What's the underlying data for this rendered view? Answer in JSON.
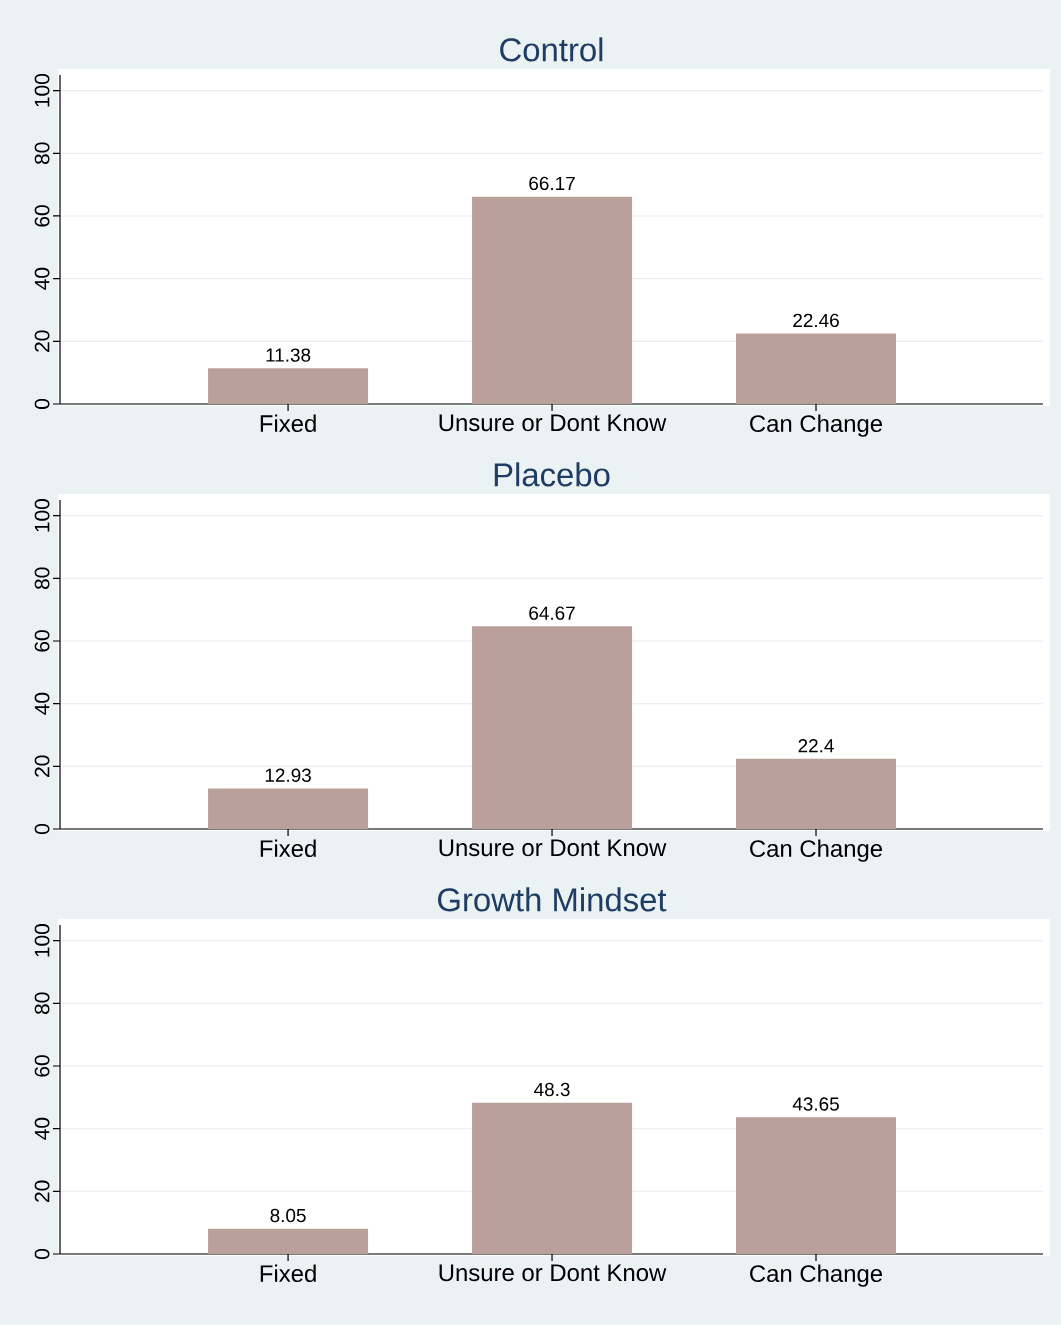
{
  "chart_data": [
    {
      "type": "bar",
      "title": "Control",
      "categories": [
        "Fixed",
        "Unsure or Dont Know",
        "Can Change"
      ],
      "values": [
        11.38,
        66.17,
        22.46
      ],
      "color": "#b9a09b",
      "ylim": [
        0,
        105
      ],
      "yticks": [
        0,
        20,
        40,
        60,
        80,
        100
      ],
      "grid": "y",
      "data_labels": true
    },
    {
      "type": "bar",
      "title": "Placebo",
      "categories": [
        "Fixed",
        "Unsure or Dont Know",
        "Can Change"
      ],
      "values": [
        12.93,
        64.67,
        22.4
      ],
      "color": "#b9a09b",
      "ylim": [
        0,
        105
      ],
      "yticks": [
        0,
        20,
        40,
        60,
        80,
        100
      ],
      "grid": "y",
      "data_labels": true
    },
    {
      "type": "bar",
      "title": "Growth Mindset",
      "categories": [
        "Fixed",
        "Unsure or Dont Know",
        "Can Change"
      ],
      "values": [
        8.05,
        48.3,
        43.65
      ],
      "color": "#b9a09b",
      "ylim": [
        0,
        105
      ],
      "yticks": [
        0,
        20,
        40,
        60,
        80,
        100
      ],
      "grid": "y",
      "data_labels": true
    }
  ]
}
